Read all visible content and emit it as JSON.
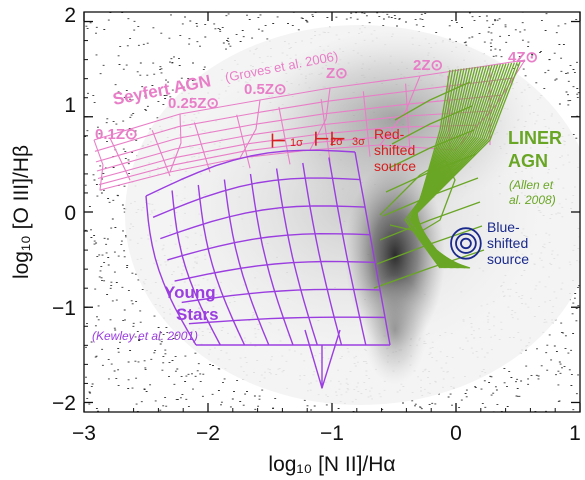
{
  "chart_data": {
    "type": "scatter",
    "xlabel": "log₁₀ [N II]/Hα",
    "ylabel": "log₁₀ [O III]/Hβ",
    "xlim": [
      -3,
      1
    ],
    "ylim": [
      -2.1,
      2.1
    ],
    "x_ticks": [
      "−3",
      "−2",
      "−1",
      "0",
      "1"
    ],
    "y_ticks": [
      "−2",
      "−1",
      "0",
      "1",
      "2"
    ],
    "x_tick_values": [
      -3,
      -2,
      -1,
      0,
      1
    ],
    "y_tick_values": [
      -2,
      -1,
      0,
      1,
      2
    ],
    "grid": false,
    "colors": {
      "agn": "#e87ec7",
      "stars": "#9b3ee0",
      "liner": "#6aa625",
      "red": "#d81e1e",
      "blue": "#1a2a8c"
    },
    "annotations": {
      "seyfert": "Seyfert AGN",
      "seyfert_ref": "(Groves et al. 2006)",
      "z01": "0.1Z⊙",
      "z025": "0.25Z⊙",
      "z05": "0.5Z⊙",
      "z1": "Z⊙",
      "z2": "2Z⊙",
      "z4": "4Z⊙",
      "liner_line1": "LINER",
      "liner_line2": "AGN",
      "liner_ref1": "(Allen et",
      "liner_ref2": "al. 2008)",
      "young_line1": "Young",
      "young_line2": "Stars",
      "young_ref": "(Kewley et al. 2001)",
      "red_line1": "Red-",
      "red_line2": "shifted",
      "red_line3": "source",
      "blue_line1": "Blue-",
      "blue_line2": "shifted",
      "blue_line3": "source",
      "sig1": "1σ",
      "sig2": "2σ",
      "sig3": "3σ"
    },
    "series": [
      {
        "type": "error_bars",
        "color": "#d81e1e",
        "points": [
          {
            "x": -1.38,
            "y": 0.75,
            "xerr_left": 0.1
          },
          {
            "x": -1.03,
            "y": 0.77,
            "xerr_left": 0.1
          },
          {
            "x": -0.9,
            "y": 0.77,
            "xerr_left": 0.1
          }
        ]
      },
      {
        "type": "contours",
        "color": "#1a2a8c",
        "center": {
          "x": 0.08,
          "y": -0.33
        },
        "radii_x": [
          0.04,
          0.08,
          0.12
        ],
        "radii_y": [
          0.05,
          0.1,
          0.16
        ]
      }
    ]
  }
}
